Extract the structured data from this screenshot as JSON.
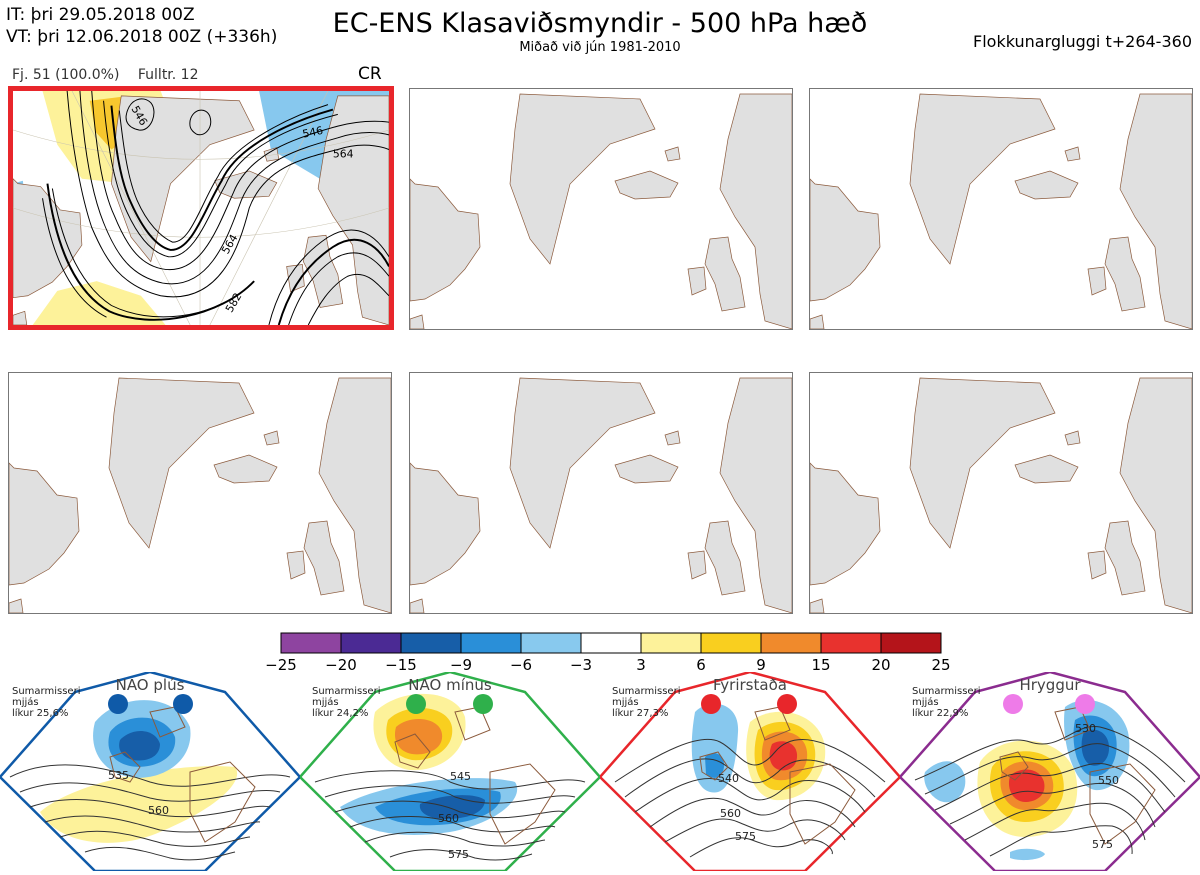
{
  "header": {
    "it_line": "IT: þri 29.05.2018 00Z",
    "vt_line": "VT: þri 12.06.2018 00Z  (+336h)",
    "title": "EC-ENS Klasaviðsmyndir - 500 hPa hæð",
    "subtitle": "Miðað við jún 1981-2010",
    "window": "Flokkunargluggi t+264-360"
  },
  "panel1": {
    "count": "Fj. 51 (100.0%)",
    "representative": "Fulltr. 12",
    "regime_code": "CR",
    "contour_labels": [
      "546",
      "564",
      "546",
      "564",
      "582"
    ]
  },
  "colors": {
    "selected_border": "#e8262b",
    "land": "#e0e0e0",
    "coast": "#8b5a3c",
    "anom_pos_light": "#fdf29a",
    "anom_pos_mid": "#f7c72e",
    "anom_neg_light": "#87c8ee",
    "anom_neg_mid": "#3aa2e0"
  },
  "colorbar": {
    "colors": [
      "#8e44a0",
      "#4b2a94",
      "#175ea8",
      "#2a8fd8",
      "#88c9ee",
      "#ffffff",
      "#fdf29a",
      "#f9cf1f",
      "#f08a2c",
      "#e8322e",
      "#b4141a"
    ],
    "ticks": [
      "−25",
      "−20",
      "−15",
      "−9",
      "−6",
      "−3",
      "3",
      "6",
      "9",
      "15",
      "20",
      "25"
    ]
  },
  "regimes": [
    {
      "name": "NAO plús",
      "season": "Sumarmisseri",
      "method": "mjjás",
      "prob": "líkur 25,6%",
      "color": "#0f5aa8",
      "labels": [
        "535",
        "560"
      ]
    },
    {
      "name": "NAO mínus",
      "season": "Sumarmisseri",
      "method": "mjjás",
      "prob": "líkur 24,2%",
      "color": "#2fb04b",
      "labels": [
        "545",
        "560",
        "575"
      ]
    },
    {
      "name": "Fyrirstaða",
      "season": "Sumarmisseri",
      "method": "mjjás",
      "prob": "líkur 27,3%",
      "color": "#e8262b",
      "labels": [
        "540",
        "560",
        "575"
      ]
    },
    {
      "name": "Hryggur",
      "season": "Sumarmisseri",
      "method": "mjjás",
      "prob": "líkur 22,9%",
      "color": "#8b2c8f",
      "dot": "#ee7be8",
      "labels": [
        "530",
        "550",
        "575"
      ]
    }
  ]
}
